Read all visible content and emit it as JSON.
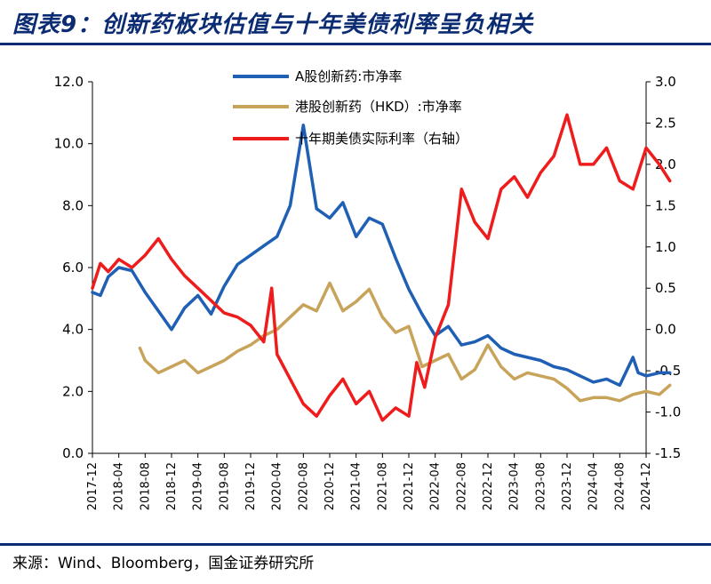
{
  "title": "图表9：创新药板块估值与十年美债利率呈负相关",
  "source": "来源：Wind、Bloomberg，国金证券研究所",
  "chart_data": {
    "type": "line",
    "title": "图表9：创新药板块估值与十年美债利率呈负相关",
    "xlabel": "",
    "ylabel": "",
    "x_ticks": [
      "2017-12",
      "2018-04",
      "2018-08",
      "2018-12",
      "2019-04",
      "2019-08",
      "2019-12",
      "2020-04",
      "2020-08",
      "2020-12",
      "2021-04",
      "2021-08",
      "2021-12",
      "2022-04",
      "2022-08",
      "2022-12",
      "2023-04",
      "2023-08",
      "2023-12",
      "2024-04",
      "2024-08",
      "2024-12"
    ],
    "y_left": {
      "min": 0,
      "max": 12,
      "ticks": [
        "0.0",
        "2.0",
        "4.0",
        "6.0",
        "8.0",
        "10.0",
        "12.0"
      ]
    },
    "y_right": {
      "min": -1.5,
      "max": 3.0,
      "ticks": [
        "-1.5",
        "-1.0",
        "-0.5",
        "0.0",
        "0.5",
        "1.0",
        "1.5",
        "2.0",
        "2.5",
        "3.0"
      ]
    },
    "legend_position": "top-center",
    "grid": false,
    "series": [
      {
        "name": "A股创新药:市净率",
        "axis": "left",
        "color": "#1f5fb4",
        "x": [
          0,
          0.3,
          0.6,
          1,
          1.5,
          2,
          2.5,
          3,
          3.5,
          4,
          4.5,
          5,
          5.5,
          6,
          6.5,
          7,
          7.5,
          8,
          8.5,
          9,
          9.5,
          10,
          10.5,
          11,
          11.5,
          12,
          12.5,
          13,
          13.5,
          14,
          14.5,
          15,
          15.5,
          16,
          16.5,
          17,
          17.5,
          18,
          18.5,
          19,
          19.5,
          20,
          20.5,
          20.7,
          21,
          21.5,
          21.9
        ],
        "y": [
          5.2,
          5.1,
          5.7,
          6.0,
          5.9,
          5.2,
          4.6,
          4.0,
          4.7,
          5.1,
          4.5,
          5.4,
          6.1,
          6.4,
          6.7,
          7.0,
          8.0,
          10.6,
          7.9,
          7.6,
          8.1,
          7.0,
          7.6,
          7.4,
          6.3,
          5.3,
          4.5,
          3.8,
          4.1,
          3.5,
          3.6,
          3.8,
          3.4,
          3.2,
          3.1,
          3.0,
          2.8,
          2.7,
          2.5,
          2.3,
          2.4,
          2.2,
          3.1,
          2.6,
          2.5,
          2.6,
          2.6
        ]
      },
      {
        "name": "港股创新药（HKD）:市净率",
        "axis": "left",
        "color": "#c8a35a",
        "x": [
          1.8,
          2,
          2.5,
          3,
          3.5,
          4,
          4.5,
          5,
          5.5,
          6,
          6.5,
          7,
          7.5,
          8,
          8.5,
          9,
          9.5,
          10,
          10.5,
          11,
          11.5,
          12,
          12.5,
          13,
          13.5,
          14,
          14.5,
          15,
          15.5,
          16,
          16.5,
          17,
          17.5,
          18,
          18.5,
          19,
          19.5,
          20,
          20.5,
          21,
          21.5,
          21.9
        ],
        "y": [
          3.4,
          3.0,
          2.6,
          2.8,
          3.0,
          2.6,
          2.8,
          3.0,
          3.3,
          3.5,
          3.8,
          4.0,
          4.4,
          4.8,
          4.6,
          5.5,
          4.6,
          4.9,
          5.3,
          4.4,
          3.9,
          4.1,
          2.8,
          3.0,
          3.2,
          2.4,
          2.7,
          3.5,
          2.8,
          2.4,
          2.6,
          2.5,
          2.4,
          2.1,
          1.7,
          1.8,
          1.8,
          1.7,
          1.9,
          2.0,
          1.9,
          2.2
        ]
      },
      {
        "name": "十年期美债实际利率（右轴）",
        "axis": "right",
        "color": "#ee1c1c",
        "x": [
          0,
          0.3,
          0.6,
          1,
          1.5,
          2,
          2.5,
          3,
          3.5,
          4,
          4.5,
          5,
          5.5,
          6,
          6.5,
          6.8,
          7,
          7.5,
          8,
          8.5,
          9,
          9.5,
          10,
          10.5,
          11,
          11.5,
          12,
          12.3,
          12.6,
          13,
          13.5,
          14,
          14.5,
          15,
          15.5,
          16,
          16.5,
          17,
          17.5,
          18,
          18.5,
          19,
          19.5,
          20,
          20.5,
          21,
          21.5,
          21.9
        ],
        "y": [
          0.5,
          0.8,
          0.7,
          0.85,
          0.75,
          0.9,
          1.1,
          0.85,
          0.65,
          0.5,
          0.35,
          0.2,
          0.15,
          0.05,
          -0.15,
          0.5,
          -0.3,
          -0.6,
          -0.9,
          -1.05,
          -0.8,
          -0.6,
          -0.9,
          -0.75,
          -1.1,
          -0.95,
          -1.05,
          -0.4,
          -0.7,
          -0.1,
          0.3,
          1.7,
          1.3,
          1.1,
          1.7,
          1.85,
          1.6,
          1.9,
          2.1,
          2.6,
          2.0,
          2.0,
          2.2,
          1.8,
          1.7,
          2.2,
          2.0,
          1.8
        ]
      }
    ]
  }
}
